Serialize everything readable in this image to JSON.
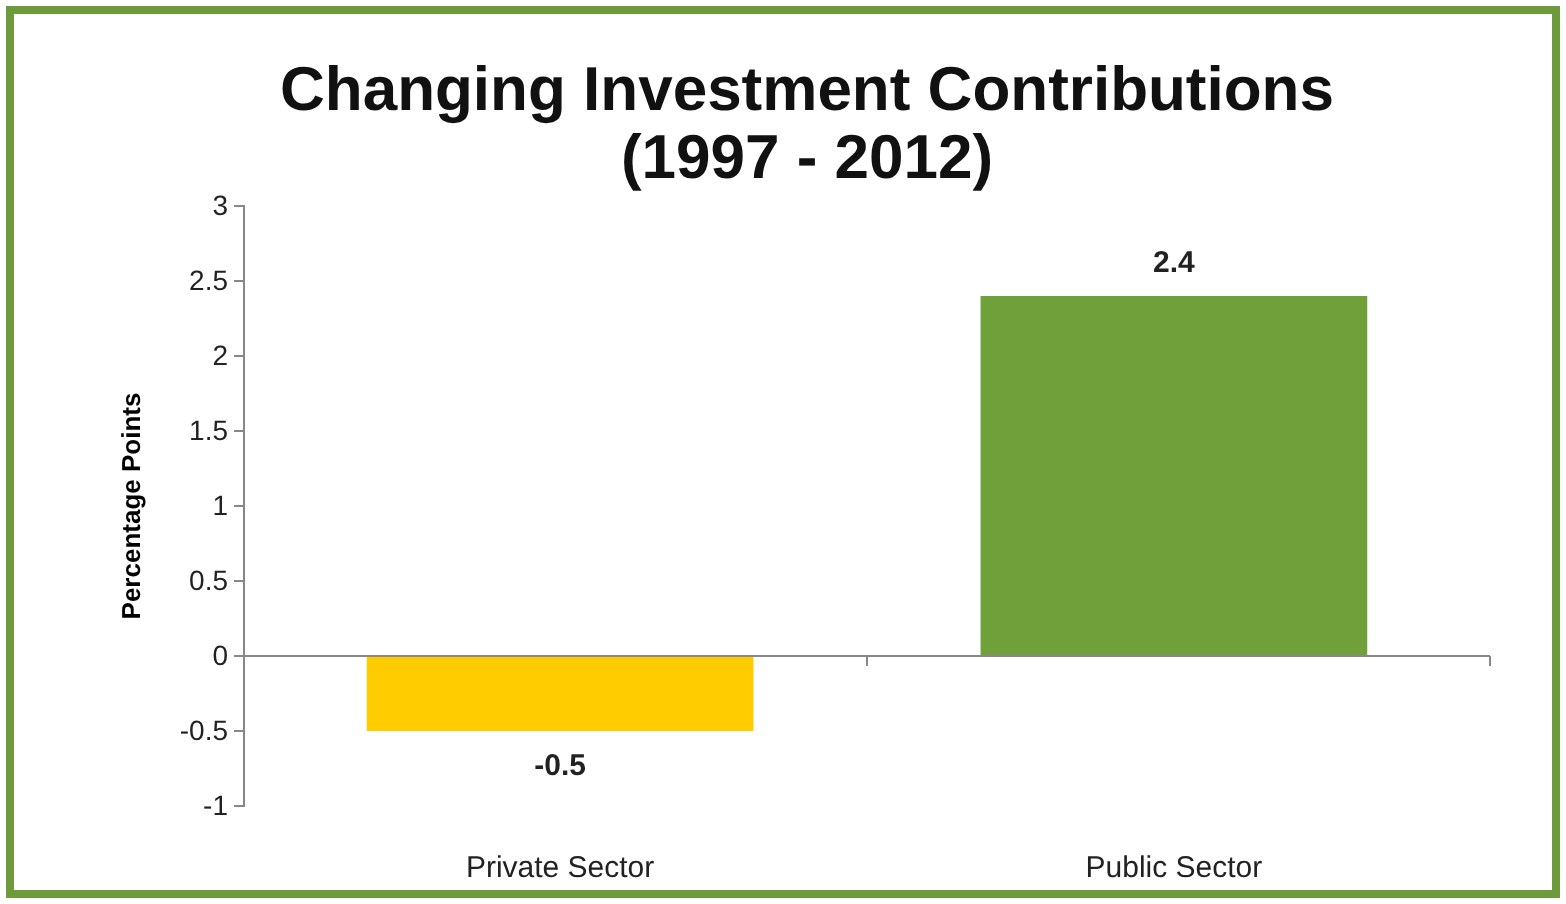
{
  "chart_data": {
    "type": "bar",
    "title": "Changing Investment Contributions\n(1997 - 2012)",
    "ylabel": "Percentage Points",
    "categories": [
      "Private Sector",
      "Public Sector"
    ],
    "values": [
      -0.5,
      2.4
    ],
    "colors": [
      "#ffcc00",
      "#70a03a"
    ],
    "ylim": [
      -1,
      3
    ],
    "yticks": [
      -1,
      -0.5,
      0,
      0.5,
      1,
      1.5,
      2,
      2.5,
      3
    ],
    "data_labels": true
  }
}
